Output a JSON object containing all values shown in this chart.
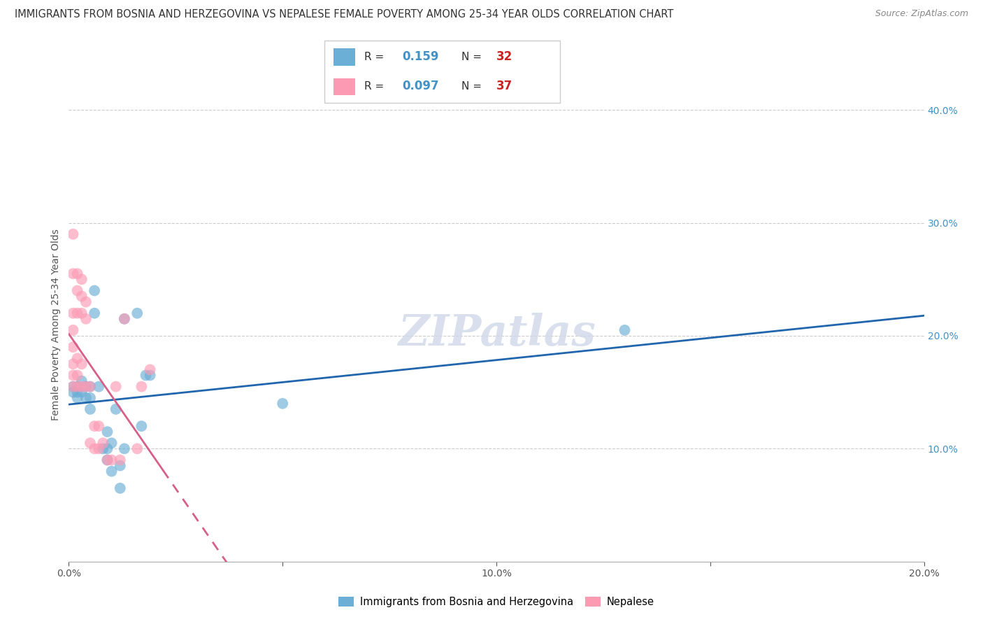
{
  "title": "IMMIGRANTS FROM BOSNIA AND HERZEGOVINA VS NEPALESE FEMALE POVERTY AMONG 25-34 YEAR OLDS CORRELATION CHART",
  "source": "Source: ZipAtlas.com",
  "ylabel": "Female Poverty Among 25-34 Year Olds",
  "xlim": [
    0.0,
    0.2
  ],
  "ylim": [
    0.0,
    0.42
  ],
  "xticks": [
    0.0,
    0.05,
    0.1,
    0.15,
    0.2
  ],
  "xticklabels": [
    "0.0%",
    "",
    "10.0%",
    "",
    "20.0%"
  ],
  "yticks_right": [
    0.1,
    0.2,
    0.3,
    0.4
  ],
  "yticklabels_right": [
    "10.0%",
    "20.0%",
    "30.0%",
    "40.0%"
  ],
  "blue_color": "#6baed6",
  "pink_color": "#fc9ab4",
  "trendline_blue": "#2166ac",
  "trendline_pink": "#d6608a",
  "R_blue": 0.159,
  "N_blue": 32,
  "R_pink": 0.097,
  "N_pink": 37,
  "watermark": "ZIPatlas",
  "legend_label_blue": "Immigrants from Bosnia and Herzegovina",
  "legend_label_pink": "Nepalese",
  "blue_scatter": [
    [
      0.001,
      0.155
    ],
    [
      0.001,
      0.15
    ],
    [
      0.002,
      0.155
    ],
    [
      0.002,
      0.15
    ],
    [
      0.002,
      0.145
    ],
    [
      0.003,
      0.16
    ],
    [
      0.003,
      0.15
    ],
    [
      0.004,
      0.155
    ],
    [
      0.004,
      0.145
    ],
    [
      0.005,
      0.155
    ],
    [
      0.005,
      0.145
    ],
    [
      0.005,
      0.135
    ],
    [
      0.006,
      0.24
    ],
    [
      0.006,
      0.22
    ],
    [
      0.007,
      0.155
    ],
    [
      0.008,
      0.1
    ],
    [
      0.009,
      0.115
    ],
    [
      0.009,
      0.1
    ],
    [
      0.009,
      0.09
    ],
    [
      0.01,
      0.105
    ],
    [
      0.01,
      0.08
    ],
    [
      0.011,
      0.135
    ],
    [
      0.012,
      0.065
    ],
    [
      0.012,
      0.085
    ],
    [
      0.013,
      0.1
    ],
    [
      0.013,
      0.215
    ],
    [
      0.016,
      0.22
    ],
    [
      0.017,
      0.12
    ],
    [
      0.018,
      0.165
    ],
    [
      0.019,
      0.165
    ],
    [
      0.05,
      0.14
    ],
    [
      0.13,
      0.205
    ]
  ],
  "pink_scatter": [
    [
      0.001,
      0.155
    ],
    [
      0.001,
      0.165
    ],
    [
      0.001,
      0.175
    ],
    [
      0.001,
      0.19
    ],
    [
      0.001,
      0.205
    ],
    [
      0.001,
      0.22
    ],
    [
      0.001,
      0.255
    ],
    [
      0.001,
      0.29
    ],
    [
      0.002,
      0.155
    ],
    [
      0.002,
      0.165
    ],
    [
      0.002,
      0.18
    ],
    [
      0.002,
      0.22
    ],
    [
      0.002,
      0.24
    ],
    [
      0.002,
      0.255
    ],
    [
      0.003,
      0.155
    ],
    [
      0.003,
      0.175
    ],
    [
      0.003,
      0.22
    ],
    [
      0.003,
      0.235
    ],
    [
      0.003,
      0.25
    ],
    [
      0.004,
      0.155
    ],
    [
      0.004,
      0.215
    ],
    [
      0.004,
      0.23
    ],
    [
      0.005,
      0.105
    ],
    [
      0.005,
      0.155
    ],
    [
      0.006,
      0.1
    ],
    [
      0.006,
      0.12
    ],
    [
      0.007,
      0.1
    ],
    [
      0.007,
      0.12
    ],
    [
      0.008,
      0.105
    ],
    [
      0.009,
      0.09
    ],
    [
      0.01,
      0.09
    ],
    [
      0.011,
      0.155
    ],
    [
      0.012,
      0.09
    ],
    [
      0.013,
      0.215
    ],
    [
      0.016,
      0.1
    ],
    [
      0.017,
      0.155
    ],
    [
      0.019,
      0.17
    ]
  ]
}
